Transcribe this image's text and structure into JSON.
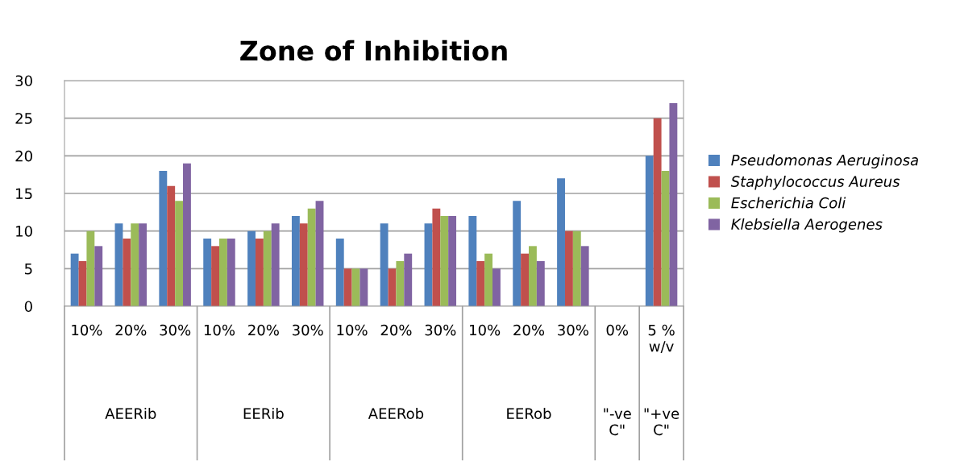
{
  "chart_data": {
    "type": "bar",
    "title": "Zone of Inhibition",
    "categories": [
      "10%",
      "20%",
      "30%",
      "10%",
      "20%",
      "30%",
      "10%",
      "20%",
      "30%",
      "10%",
      "20%",
      "30%",
      "0%",
      "5 % w/v"
    ],
    "annotations": [
      "AEERib",
      "EERib",
      "AEERob",
      "EERob",
      "\"-ve C\"",
      "\"+ve C\""
    ],
    "series": [
      {
        "name": "Pseudomonas Aeruginosa",
        "color": "#4f81bd",
        "values": [
          7,
          11,
          18,
          9,
          10,
          12,
          9,
          11,
          11,
          12,
          14,
          17,
          null,
          20
        ]
      },
      {
        "name": "Staphylococcus Aureus",
        "color": "#c0504d",
        "values": [
          6,
          9,
          16,
          8,
          9,
          11,
          5,
          5,
          13,
          6,
          7,
          10,
          null,
          25
        ]
      },
      {
        "name": "Escherichia Coli",
        "color": "#9bbb59",
        "values": [
          10,
          11,
          14,
          9,
          10,
          13,
          5,
          6,
          12,
          7,
          8,
          10,
          null,
          18
        ]
      },
      {
        "name": "Klebsiella Aerogenes",
        "color": "#8064a2",
        "values": [
          8,
          11,
          19,
          9,
          11,
          14,
          5,
          7,
          12,
          5,
          6,
          8,
          null,
          27
        ]
      }
    ],
    "ylim": [
      0,
      30
    ],
    "yticks": [
      0,
      5,
      10,
      15,
      20,
      25,
      30
    ],
    "grid": "y",
    "legend": "right"
  }
}
